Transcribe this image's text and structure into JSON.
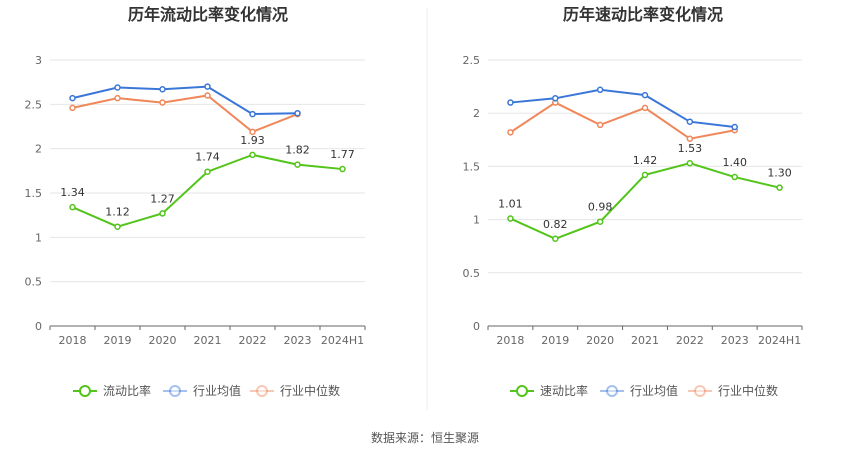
{
  "source_label": "数据来源：恒生聚源",
  "chart_data": [
    {
      "type": "line",
      "title": "历年流动比率变化情况",
      "categories": [
        "2018",
        "2019",
        "2020",
        "2021",
        "2022",
        "2023",
        "2024H1"
      ],
      "ylim": [
        0,
        3
      ],
      "yticks": [
        "0",
        "0.5",
        "1",
        "1.5",
        "2",
        "2.5",
        "3"
      ],
      "grid": true,
      "legend_position": "bottom",
      "series": [
        {
          "name": "流动比率",
          "color": "#52c41a",
          "values": [
            1.34,
            1.12,
            1.27,
            1.74,
            1.93,
            1.82,
            1.77
          ],
          "data_labels": [
            "1.34",
            "1.12",
            "1.27",
            "1.74",
            "1.93",
            "1.82",
            "1.77"
          ]
        },
        {
          "name": "行业均值",
          "color": "#3a76d8",
          "values": [
            2.57,
            2.69,
            2.67,
            2.7,
            2.39,
            2.4,
            null
          ]
        },
        {
          "name": "行业中位数",
          "color": "#f0875a",
          "values": [
            2.46,
            2.57,
            2.52,
            2.6,
            2.19,
            2.39,
            null
          ]
        }
      ]
    },
    {
      "type": "line",
      "title": "历年速动比率变化情况",
      "categories": [
        "2018",
        "2019",
        "2020",
        "2021",
        "2022",
        "2023",
        "2024H1"
      ],
      "ylim": [
        0,
        2.5
      ],
      "yticks": [
        "0",
        "0.5",
        "1",
        "1.5",
        "2",
        "2.5"
      ],
      "grid": true,
      "legend_position": "bottom",
      "series": [
        {
          "name": "速动比率",
          "color": "#52c41a",
          "values": [
            1.01,
            0.82,
            0.98,
            1.42,
            1.53,
            1.4,
            1.3
          ],
          "data_labels": [
            "1.01",
            "0.82",
            "0.98",
            "1.42",
            "1.53",
            "1.40",
            "1.30"
          ]
        },
        {
          "name": "行业均值",
          "color": "#3a76d8",
          "values": [
            2.1,
            2.14,
            2.22,
            2.17,
            1.92,
            1.87,
            null
          ]
        },
        {
          "name": "行业中位数",
          "color": "#f0875a",
          "values": [
            1.82,
            2.1,
            1.89,
            2.05,
            1.76,
            1.84,
            null
          ]
        }
      ]
    }
  ]
}
